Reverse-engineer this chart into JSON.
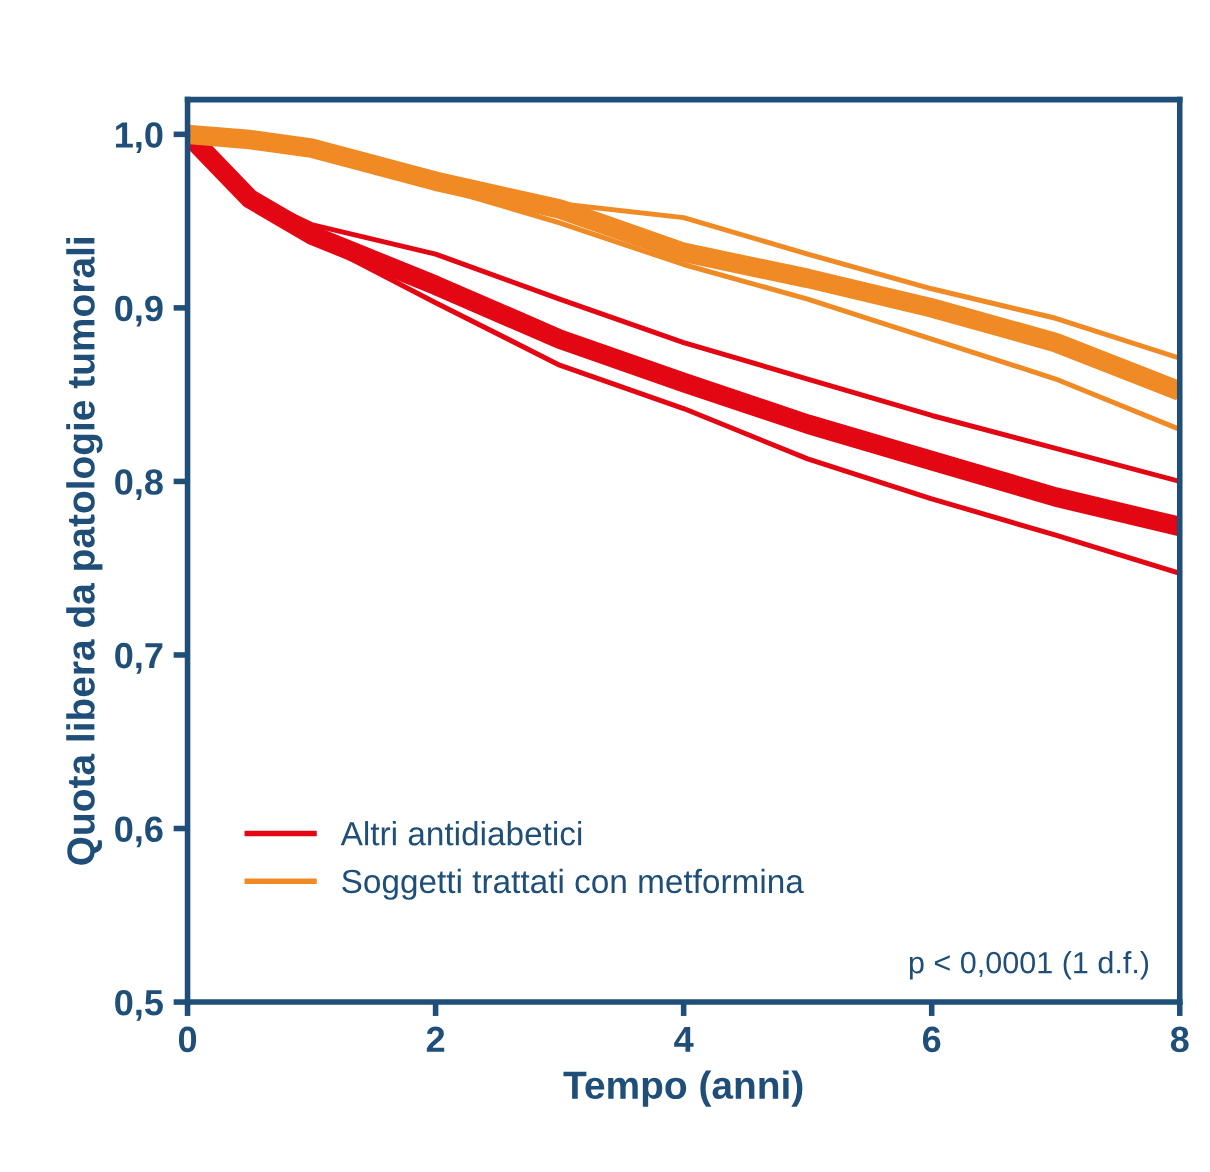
{
  "chart_data": {
    "type": "line",
    "xlabel": "Tempo (anni)",
    "ylabel": "Quota libera da patologie tumorali",
    "x": [
      0,
      0.5,
      1,
      2,
      3,
      4,
      5,
      6,
      7,
      8
    ],
    "series": [
      {
        "name": "Altri antidiabetici",
        "color": "#e30613",
        "values": [
          1.0,
          0.963,
          0.942,
          0.913,
          0.882,
          0.857,
          0.833,
          0.812,
          0.791,
          0.774
        ]
      },
      {
        "color": "#e30613",
        "values": [
          1.0,
          0.96,
          0.94,
          0.903,
          0.867,
          0.842,
          0.813,
          0.79,
          0.769,
          0.747
        ]
      },
      {
        "color": "#e30613",
        "values": [
          1.0,
          0.965,
          0.948,
          0.931,
          0.905,
          0.88,
          0.859,
          0.838,
          0.819,
          0.8
        ]
      },
      {
        "name": "Soggetti trattati con metformina",
        "color": "#f08a24",
        "values": [
          1.0,
          0.997,
          0.992,
          0.973,
          0.957,
          0.932,
          0.917,
          0.9,
          0.88,
          0.852
        ]
      },
      {
        "color": "#f08a24",
        "values": [
          1.0,
          0.996,
          0.991,
          0.97,
          0.949,
          0.925,
          0.905,
          0.882,
          0.859,
          0.83
        ]
      },
      {
        "color": "#f08a24",
        "values": [
          1.0,
          0.998,
          0.993,
          0.975,
          0.96,
          0.952,
          0.931,
          0.911,
          0.894,
          0.871
        ]
      }
    ],
    "xlim": [
      0,
      8
    ],
    "xticks": [
      0,
      2,
      4,
      6,
      8
    ],
    "ylim": [
      0.5,
      1.02
    ],
    "yticks": [
      {
        "value": 0.5,
        "label": "0,5"
      },
      {
        "value": 0.6,
        "label": "0,6"
      },
      {
        "value": 0.7,
        "label": "0,7"
      },
      {
        "value": 0.8,
        "label": "0,8"
      },
      {
        "value": 0.9,
        "label": "0,9"
      },
      {
        "value": 1.0,
        "label": "1,0"
      }
    ],
    "grid": false,
    "legend": "bottom left",
    "annotations": [
      "p < 0,0001 (1 d.f.)"
    ]
  }
}
